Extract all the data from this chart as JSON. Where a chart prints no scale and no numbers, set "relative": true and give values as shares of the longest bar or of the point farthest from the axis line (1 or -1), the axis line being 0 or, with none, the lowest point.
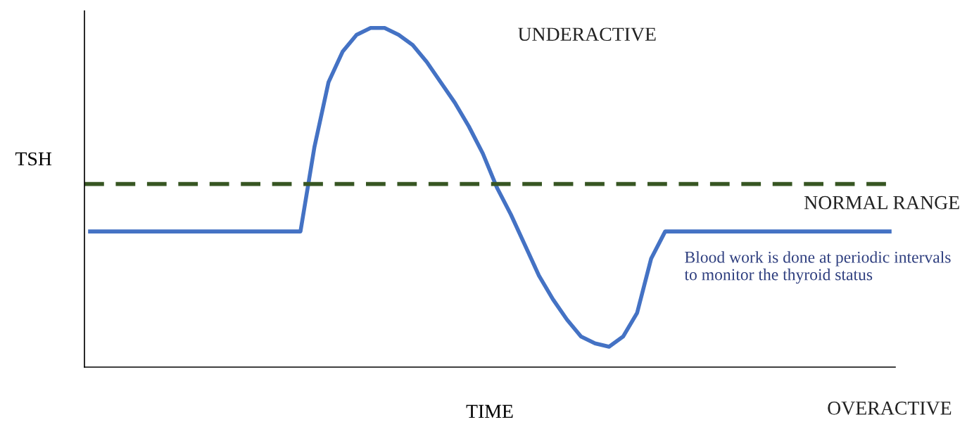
{
  "chart_data": {
    "type": "line",
    "relative": true,
    "xlabel": "TIME",
    "ylabel": "TSH",
    "categories": [
      null,
      null,
      null,
      null,
      null,
      null,
      null,
      null,
      null,
      null,
      null,
      null,
      null,
      null,
      null,
      null,
      null,
      null,
      null,
      null,
      null,
      null,
      null,
      null,
      null,
      null,
      null,
      null,
      null,
      null,
      null,
      null,
      null,
      null,
      null,
      null,
      null,
      null,
      null,
      null,
      null,
      null,
      null,
      null,
      null,
      null,
      null,
      null,
      null,
      null,
      null,
      null,
      null,
      null,
      null,
      null,
      null,
      null
    ],
    "series": [
      {
        "color": "#4472c4",
        "values": [
          0.4,
          0.4,
          0.4,
          0.4,
          0.4,
          0.4,
          0.4,
          0.4,
          0.4,
          0.4,
          0.4,
          0.4,
          0.4,
          0.4,
          0.4,
          0.4,
          0.65,
          0.84,
          0.93,
          0.98,
          1.0,
          1.0,
          0.98,
          0.95,
          0.9,
          0.84,
          0.78,
          0.71,
          0.63,
          0.53,
          0.45,
          0.36,
          0.27,
          0.2,
          0.14,
          0.09,
          0.07,
          0.06,
          0.09,
          0.16,
          0.32,
          0.4,
          0.4,
          0.4,
          0.4,
          0.4,
          0.4,
          0.4,
          0.4,
          0.4,
          0.4,
          0.4,
          0.4,
          0.4,
          0.4,
          0.4,
          0.4,
          0.4
        ]
      }
    ],
    "ref_lines": [
      {
        "axis": "y",
        "value": 0.54,
        "label": "NORMAL RANGE",
        "color": "#375623",
        "line_style": "dashed"
      }
    ],
    "annotations": [
      "UNDERACTIVE",
      "OVERACTIVE",
      "Blood work is done at periodic intervals to monitor the thyroid status"
    ],
    "marker": "none",
    "line_style": "solid",
    "legend": false
  }
}
